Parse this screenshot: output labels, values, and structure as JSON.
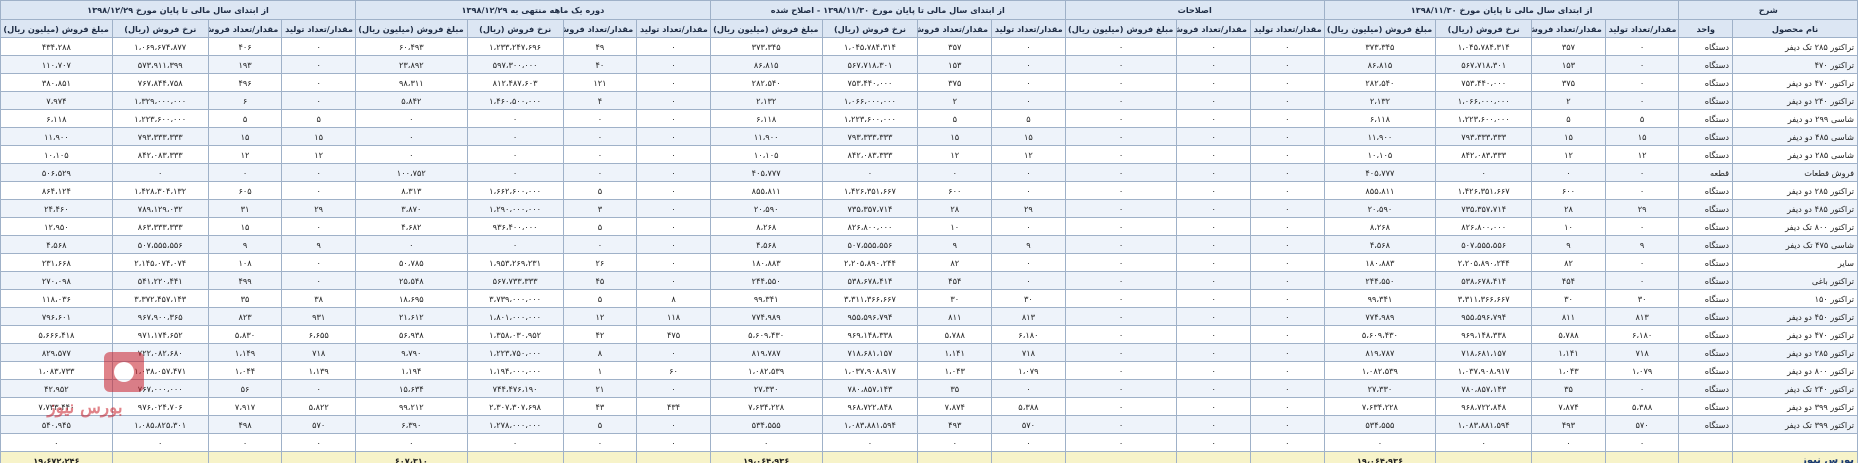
{
  "header": {
    "groups": [
      "شرح",
      "از ابتدای سال مالی تا پایان مورخ ۱۳۹۸/۱۱/۳۰",
      "اصلاحات",
      "از ابتدای سال مالی تا پایان مورخ ۱۳۹۸/۱۱/۳۰ - اصلاح شده",
      "دوره یک ماهه منتهی به ۱۳۹۸/۱۲/۲۹",
      "از ابتدای سال مالی تا پایان مورخ ۱۳۹۸/۱۲/۲۹"
    ],
    "sub": [
      "نام محصول",
      "واحد",
      "مقدار/تعداد تولید",
      "مقدار/تعداد فروش",
      "نرخ فروش (ریال)",
      "مبلغ فروش (میلیون ریال)",
      "مقدار/تعداد تولید",
      "مقدار/تعداد فروش",
      "مبلغ فروش (میلیون ریال)",
      "مقدار/تعداد تولید",
      "مقدار/تعداد فروش",
      "نرخ فروش (ریال)",
      "مبلغ فروش (میلیون ریال)",
      "مقدار/تعداد تولید",
      "مقدار/تعداد فروش",
      "نرخ فروش (ریال)",
      "مبلغ فروش (میلیون ریال)",
      "مقدار/تعداد تولید",
      "مقدار/تعداد فروش",
      "نرخ فروش (ریال)",
      "مبلغ فروش (میلیون ریال)"
    ]
  },
  "rows": [
    [
      "تراکتور ۲۸۵ تک دیفر",
      "دستگاه",
      "۰",
      "۳۵۷",
      "۱،۰۴۵،۷۸۴،۳۱۴",
      "۳۷۳،۳۴۵",
      "۰",
      "۰",
      "۰",
      "۰",
      "۳۵۷",
      "۱،۰۴۵،۷۸۴،۳۱۴",
      "۳۷۳،۳۴۵",
      "۰",
      "۴۹",
      "۱،۲۳۳،۲۴۷،۶۹۶",
      "۶۰،۴۹۳",
      "۰",
      "۴۰۶",
      "۱،۰۶۹،۶۷۴،۸۷۷",
      "۴۳۴،۲۸۸"
    ],
    [
      "تراکتور ۴۷۰",
      "دستگاه",
      "۰",
      "۱۵۳",
      "۵۶۷،۷۱۸،۳۰۱",
      "۸۶،۸۱۵",
      "۰",
      "۰",
      "۰",
      "۰",
      "۱۵۳",
      "۵۶۷،۷۱۸،۳۰۱",
      "۸۶،۸۱۵",
      "۰",
      "۴۰",
      "۵۹۷،۳۰۰،۰۰۰",
      "۲۳،۸۹۲",
      "۰",
      "۱۹۳",
      "۵۷۳،۹۱۱،۳۹۹",
      "۱۱۰،۷۰۷"
    ],
    [
      "تراکتور ۴۷۰ دو دیفر",
      "دستگاه",
      "۰",
      "۳۷۵",
      "۷۵۳،۴۴۰،۰۰۰",
      "۲۸۲،۵۴۰",
      "۰",
      "۰",
      "۰",
      "۰",
      "۳۷۵",
      "۷۵۳،۴۴۰،۰۰۰",
      "۲۸۲،۵۴۰",
      "۰",
      "۱۲۱",
      "۸۱۲،۴۸۷،۶۰۳",
      "۹۸،۳۱۱",
      "۰",
      "۴۹۶",
      "۷۶۷،۸۴۴،۷۵۸",
      "۳۸۰،۸۵۱"
    ],
    [
      "تراکتور ۲۴۰ دو دیفر",
      "دستگاه",
      "۰",
      "۲",
      "۱،۰۶۶،۰۰۰،۰۰۰",
      "۲،۱۳۲",
      "۰",
      "۰",
      "۰",
      "۰",
      "۲",
      "۱،۰۶۶،۰۰۰،۰۰۰",
      "۲،۱۳۲",
      "۰",
      "۴",
      "۱،۴۶۰،۵۰۰،۰۰۰",
      "۵،۸۴۲",
      "۰",
      "۶",
      "۱،۳۲۹،۰۰۰،۰۰۰",
      "۷،۹۷۴"
    ],
    [
      "شاسی ۲۹۹ دو دیفر",
      "دستگاه",
      "۵",
      "۵",
      "۱،۲۲۳،۶۰۰،۰۰۰",
      "۶،۱۱۸",
      "۰",
      "۰",
      "۰",
      "۵",
      "۵",
      "۱،۲۲۳،۶۰۰،۰۰۰",
      "۶،۱۱۸",
      "۰",
      "۰",
      "۰",
      "۰",
      "۵",
      "۵",
      "۱،۲۲۳،۶۰۰،۰۰۰",
      "۶،۱۱۸"
    ],
    [
      "شاسی ۴۸۵ دو دیفر",
      "دستگاه",
      "۱۵",
      "۱۵",
      "۷۹۳،۳۳۳،۳۳۳",
      "۱۱،۹۰۰",
      "۰",
      "۰",
      "۰",
      "۱۵",
      "۱۵",
      "۷۹۳،۳۳۳،۳۳۳",
      "۱۱،۹۰۰",
      "۰",
      "۰",
      "۰",
      "۰",
      "۱۵",
      "۱۵",
      "۷۹۳،۳۳۳،۳۳۳",
      "۱۱،۹۰۰"
    ],
    [
      "شاسی ۲۸۵ دو دیفر",
      "دستگاه",
      "۱۲",
      "۱۲",
      "۸۴۲،۰۸۳،۳۳۳",
      "۱۰،۱۰۵",
      "۰",
      "۰",
      "۰",
      "۱۲",
      "۱۲",
      "۸۴۲،۰۸۳،۳۳۳",
      "۱۰،۱۰۵",
      "۰",
      "۰",
      "۰",
      "۰",
      "۱۲",
      "۱۲",
      "۸۴۲،۰۸۳،۳۳۳",
      "۱۰،۱۰۵"
    ],
    [
      "فروش قطعات",
      "قطعه",
      "۰",
      "۰",
      "۰",
      "۴۰۵،۷۷۷",
      "۰",
      "۰",
      "۰",
      "۰",
      "۰",
      "۰",
      "۴۰۵،۷۷۷",
      "۰",
      "۰",
      "۰",
      "۱۰۰،۷۵۲",
      "۰",
      "۰",
      "۰",
      "۵۰۶،۵۲۹"
    ],
    [
      "تراکتور ۲۸۵ دو دیفر",
      "دستگاه",
      "۰",
      "۶۰۰",
      "۱،۴۲۶،۳۵۱،۶۶۷",
      "۸۵۵،۸۱۱",
      "۰",
      "۰",
      "۰",
      "۰",
      "۶۰۰",
      "۱،۴۲۶،۳۵۱،۶۶۷",
      "۸۵۵،۸۱۱",
      "۰",
      "۵",
      "۱،۶۶۲،۶۰۰،۰۰۰",
      "۸،۳۱۳",
      "۰",
      "۶۰۵",
      "۱،۴۲۸،۳۰۴،۱۳۲",
      "۸۶۴،۱۲۴"
    ],
    [
      "تراکتور ۴۸۵ دو دیفر",
      "دستگاه",
      "۲۹",
      "۲۸",
      "۷۳۵،۳۵۷،۷۱۴",
      "۲۰،۵۹۰",
      "۰",
      "۰",
      "۰",
      "۲۹",
      "۲۸",
      "۷۳۵،۳۵۷،۷۱۴",
      "۲۰،۵۹۰",
      "۰",
      "۳",
      "۱،۲۹۰،۰۰۰،۰۰۰",
      "۳،۸۷۰",
      "۲۹",
      "۳۱",
      "۷۸۹،۱۲۹،۰۳۲",
      "۲۴،۴۶۰"
    ],
    [
      "تراکتور ۸۰۰ تک دیفر",
      "دستگاه",
      "۰",
      "۱۰",
      "۸۲۶،۸۰۰،۰۰۰",
      "۸،۲۶۸",
      "۰",
      "۰",
      "۰",
      "۰",
      "۱۰",
      "۸۲۶،۸۰۰،۰۰۰",
      "۸،۲۶۸",
      "۰",
      "۵",
      "۹۳۶،۴۰۰،۰۰۰",
      "۴،۶۸۲",
      "۰",
      "۱۵",
      "۸۶۳،۳۳۳،۳۳۳",
      "۱۲،۹۵۰"
    ],
    [
      "شاسی ۴۷۵ تک دیفر",
      "دستگاه",
      "۹",
      "۹",
      "۵۰۷،۵۵۵،۵۵۶",
      "۴،۵۶۸",
      "۰",
      "۰",
      "۰",
      "۹",
      "۹",
      "۵۰۷،۵۵۵،۵۵۶",
      "۴،۵۶۸",
      "۰",
      "۰",
      "۰",
      "۰",
      "۹",
      "۹",
      "۵۰۷،۵۵۵،۵۵۶",
      "۴،۵۶۸"
    ],
    [
      "سایر",
      "دستگاه",
      "۰",
      "۸۲",
      "۲،۲۰۵،۸۹۰،۲۴۴",
      "۱۸۰،۸۸۳",
      "۰",
      "۰",
      "۰",
      "۰",
      "۸۲",
      "۲،۲۰۵،۸۹۰،۲۴۴",
      "۱۸۰،۸۸۳",
      "۰",
      "۲۶",
      "۱،۹۵۳،۲۶۹،۲۳۱",
      "۵۰،۷۸۵",
      "۰",
      "۱۰۸",
      "۲،۱۴۵،۰۷۴،۰۷۴",
      "۲۳۱،۶۶۸"
    ],
    [
      "تراکتور باغی",
      "دستگاه",
      "۰",
      "۴۵۴",
      "۵۳۸،۶۷۸،۴۱۴",
      "۲۴۴،۵۵۰",
      "۰",
      "۰",
      "۰",
      "۰",
      "۴۵۴",
      "۵۳۸،۶۷۸،۴۱۴",
      "۲۴۴،۵۵۰",
      "۰",
      "۴۵",
      "۵۶۷،۷۳۳،۳۳۳",
      "۲۵،۵۴۸",
      "۰",
      "۴۹۹",
      "۵۴۱،۲۲۰،۴۴۱",
      "۲۷۰،۰۹۸"
    ],
    [
      "تراکتور ۱۵۰",
      "دستگاه",
      "۳۰",
      "۳۰",
      "۳،۳۱۱،۳۶۶،۶۶۷",
      "۹۹،۳۴۱",
      "۰",
      "۰",
      "۰",
      "۳۰",
      "۳۰",
      "۳،۳۱۱،۳۶۶،۶۶۷",
      "۹۹،۳۴۱",
      "۸",
      "۵",
      "۳،۷۳۹،۰۰۰،۰۰۰",
      "۱۸،۶۹۵",
      "۳۸",
      "۳۵",
      "۳،۳۷۲،۴۵۷،۱۴۳",
      "۱۱۸،۰۳۶"
    ],
    [
      "تراکتور ۴۵۰ دو دیفر",
      "دستگاه",
      "۸۱۳",
      "۸۱۱",
      "۹۵۵،۵۹۶،۷۹۴",
      "۷۷۴،۹۸۹",
      "۰",
      "۰",
      "۰",
      "۸۱۳",
      "۸۱۱",
      "۹۵۵،۵۹۶،۷۹۴",
      "۷۷۴،۹۸۹",
      "۱۱۸",
      "۱۲",
      "۱،۸۰۱،۰۰۰،۰۰۰",
      "۲۱،۶۱۲",
      "۹۳۱",
      "۸۲۳",
      "۹۶۷،۹۰۰،۳۶۵",
      "۷۹۶،۶۰۱"
    ],
    [
      "تراکتور ۴۷۰ دو دیفر",
      "دستگاه",
      "۶،۱۸۰",
      "۵،۷۸۸",
      "۹۶۹،۱۴۸،۳۳۸",
      "۵،۶۰۹،۴۳۰",
      "۰",
      "۰",
      "۰",
      "۶،۱۸۰",
      "۵،۷۸۸",
      "۹۶۹،۱۴۸،۳۳۸",
      "۵،۶۰۹،۴۳۰",
      "۴۷۵",
      "۴۲",
      "۱،۳۵۸،۰۳۰،۹۵۲",
      "۵۶،۹۳۸",
      "۶،۶۵۵",
      "۵،۸۳۰",
      "۹۷۱،۱۷۴،۶۵۲",
      "۵،۶۶۶،۴۱۸"
    ],
    [
      "تراکتور ۲۸۵ دو دیفر",
      "دستگاه",
      "۷۱۸",
      "۱،۱۴۱",
      "۷۱۸،۶۸۱،۱۵۷",
      "۸۱۹،۷۸۷",
      "۰",
      "۰",
      "۰",
      "۷۱۸",
      "۱،۱۴۱",
      "۷۱۸،۶۸۱،۱۵۷",
      "۸۱۹،۷۸۷",
      "۰",
      "۸",
      "۱،۲۲۳،۷۵۰،۰۰۰",
      "۹،۷۹۰",
      "۷۱۸",
      "۱،۱۴۹",
      "۷۲۲،۰۸۲،۶۸۰",
      "۸۲۹،۵۷۷"
    ],
    [
      "تراکتور ۸۰۰ دو دیفر",
      "دستگاه",
      "۱،۰۷۹",
      "۱،۰۴۳",
      "۱،۰۳۷،۹۰۸،۹۱۷",
      "۱،۰۸۲،۵۳۹",
      "۰",
      "۰",
      "۰",
      "۱،۰۷۹",
      "۱،۰۴۳",
      "۱،۰۳۷،۹۰۸،۹۱۷",
      "۱،۰۸۲،۵۳۹",
      "۶۰",
      "۱",
      "۱،۱۹۴،۰۰۰،۰۰۰",
      "۱،۱۹۴",
      "۱،۱۳۹",
      "۱،۰۴۴",
      "۱،۰۳۸،۰۵۷،۴۷۱",
      "۱،۰۸۳،۷۳۳"
    ],
    [
      "تراکتور ۲۴۰ تک دیفر",
      "دستگاه",
      "۰",
      "۳۵",
      "۷۸۰،۸۵۷،۱۴۳",
      "۲۷،۳۳۰",
      "۰",
      "۰",
      "۰",
      "۰",
      "۳۵",
      "۷۸۰،۸۵۷،۱۴۳",
      "۲۷،۳۳۰",
      "۰",
      "۲۱",
      "۷۴۴،۴۷۶،۱۹۰",
      "۱۵،۶۳۴",
      "۰",
      "۵۶",
      "۷۶۷،۰۰۰،۰۰۰",
      "۴۲،۹۵۲"
    ],
    [
      "تراکتور ۳۹۹ دو دیفر",
      "دستگاه",
      "۵،۳۸۸",
      "۷،۸۷۴",
      "۹۶۸،۷۲۲،۸۴۸",
      "۷،۶۳۴،۲۲۸",
      "۰",
      "۰",
      "۰",
      "۵،۳۸۸",
      "۷،۸۷۴",
      "۹۶۸،۷۲۲،۸۴۸",
      "۷،۶۳۴،۲۲۸",
      "۴۳۴",
      "۴۳",
      "۲،۳۰۷،۳۰۷،۶۹۸",
      "۹۹،۲۱۲",
      "۵،۸۲۲",
      "۷،۹۱۷",
      "۹۷۶،۰۲۴،۷۰۶",
      "۷،۷۳۳،۴۴۰"
    ],
    [
      "تراکتور ۳۹۹ تک دیفر",
      "دستگاه",
      "۵۷۰",
      "۴۹۳",
      "۱،۰۸۳،۸۸۱،۵۹۴",
      "۵۳۴،۵۵۵",
      "۰",
      "۰",
      "۰",
      "۵۷۰",
      "۴۹۳",
      "۱،۰۸۳،۸۸۱،۵۹۴",
      "۵۳۴،۵۵۵",
      "۰",
      "۵",
      "۱،۲۷۸،۰۰۰،۰۰۰",
      "۶،۳۹۰",
      "۵۷۰",
      "۴۹۸",
      "۱،۰۸۵،۸۲۵،۳۰۱",
      "۵۴۰،۹۴۵"
    ],
    [
      "",
      "",
      "۰",
      "۰",
      "۰",
      "۰",
      "۰",
      "۰",
      "۰",
      "۰",
      "۰",
      "۰",
      "۰",
      "۰",
      "۰",
      "۰",
      "۰",
      "۰",
      "۰",
      "۰",
      "۰"
    ]
  ],
  "total": {
    "label": "بورس نیوز",
    "c5": "۱۹،۰۶۴،۹۳۶",
    "c12": "۱۹،۰۶۴،۹۳۶",
    "c16": "۶۰۷،۳۱۰",
    "c20": "۱۹،۶۷۲،۲۴۶"
  },
  "watermark": {
    "text": "بورس نیوز"
  },
  "colors": {
    "header_bg": "#dce6f3",
    "stripe": "#eef3fa",
    "total_bg": "#f7f3c9",
    "border": "#9fb1c8",
    "watermark": "#c81e2a"
  }
}
